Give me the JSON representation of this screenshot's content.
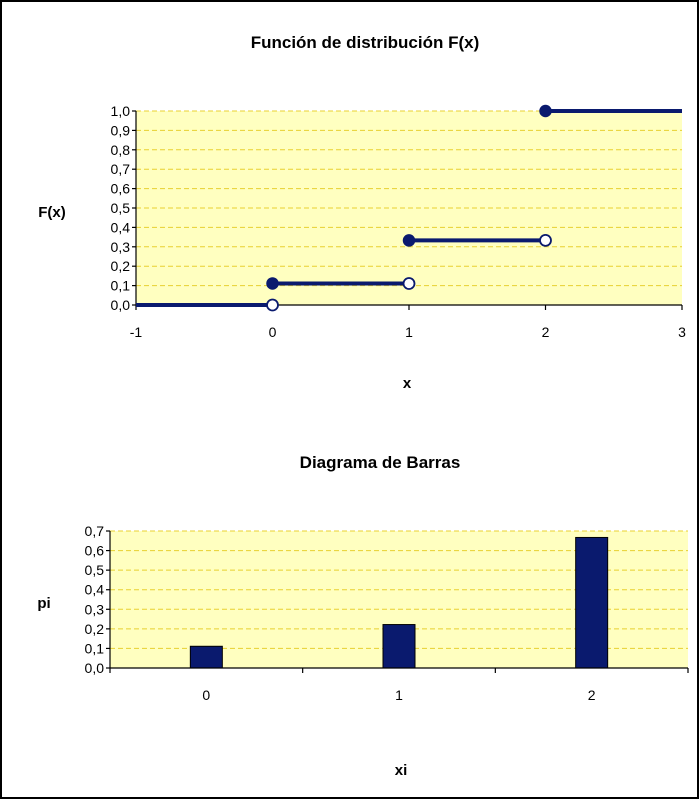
{
  "chart_data": [
    {
      "type": "line",
      "title": "Función de distribución F(x)",
      "xlabel": "x",
      "ylabel": "F(x)",
      "xlim": [
        -1,
        3
      ],
      "ylim": [
        0,
        1
      ],
      "x_ticks": [
        "-1",
        "0",
        "1",
        "2",
        "3"
      ],
      "y_ticks": [
        "0,0",
        "0,1",
        "0,2",
        "0,3",
        "0,4",
        "0,5",
        "0,6",
        "0,7",
        "0,8",
        "0,9",
        "1,0"
      ],
      "grid": true,
      "step_segments": [
        {
          "x_start": -1,
          "x_end": 0,
          "y": 0,
          "start_closed": false,
          "end_closed": false
        },
        {
          "x_start": 0,
          "x_end": 1,
          "y": 0.111,
          "start_closed": true,
          "end_closed": false
        },
        {
          "x_start": 1,
          "x_end": 2,
          "y": 0.333,
          "start_closed": true,
          "end_closed": false
        },
        {
          "x_start": 2,
          "x_end": 3,
          "y": 1.0,
          "start_closed": true,
          "end_closed": false
        }
      ],
      "open_points": [
        {
          "x": 0,
          "y": 0
        },
        {
          "x": 1,
          "y": 0.111
        },
        {
          "x": 2,
          "y": 0.333
        }
      ]
    },
    {
      "type": "bar",
      "title": "Diagrama de Barras",
      "xlabel": "xi",
      "ylabel": "pi",
      "categories": [
        "0",
        "1",
        "2"
      ],
      "values": [
        0.111,
        0.222,
        0.667
      ],
      "ylim": [
        0,
        0.7
      ],
      "y_ticks": [
        "0,0",
        "0,1",
        "0,2",
        "0,3",
        "0,4",
        "0,5",
        "0,6",
        "0,7"
      ],
      "grid": true
    }
  ]
}
